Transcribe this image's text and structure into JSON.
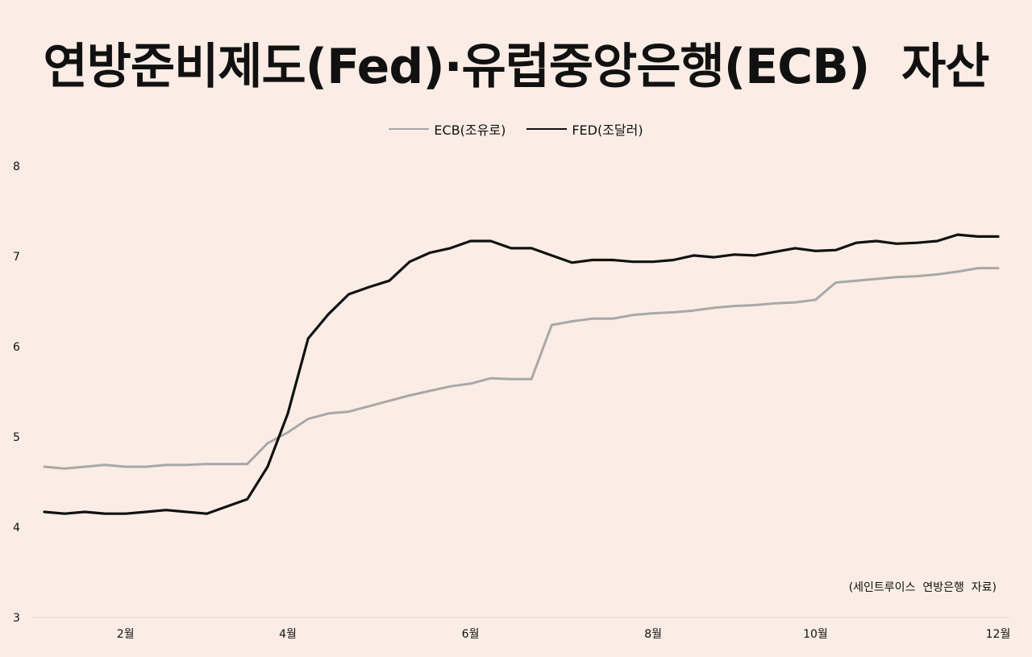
{
  "title": "연방준비제도(Fed)·유럽중앙은행(ECB)  자산",
  "source_note": "(세인트루이스  연방은행  자료)",
  "chart_data": {
    "type": "line",
    "title": "연방준비제도(Fed)·유럽중앙은행(ECB)  자산",
    "ylim": [
      3,
      8
    ],
    "yticks": [
      "3",
      "4",
      "5",
      "6",
      "7",
      "8"
    ],
    "xticks": [
      {
        "label": "2월",
        "x": 5
      },
      {
        "label": "4월",
        "x": 13
      },
      {
        "label": "6월",
        "x": 22
      },
      {
        "label": "8월",
        "x": 31
      },
      {
        "label": "10월",
        "x": 39
      },
      {
        "label": "12월",
        "x": 48
      }
    ],
    "x": [
      1,
      2,
      3,
      4,
      5,
      6,
      7,
      8,
      9,
      10,
      11,
      12,
      13,
      14,
      15,
      16,
      17,
      18,
      19,
      20,
      21,
      22,
      23,
      24,
      25,
      26,
      27,
      28,
      29,
      30,
      31,
      32,
      33,
      34,
      35,
      36,
      37,
      38,
      39,
      40,
      41,
      42,
      43,
      44,
      45,
      46,
      47,
      48
    ],
    "series": [
      {
        "name": "ECB(조유로)",
        "color": "#a8a8a8",
        "values": [
          4.67,
          4.65,
          4.67,
          4.69,
          4.67,
          4.67,
          4.69,
          4.69,
          4.7,
          4.7,
          4.7,
          4.93,
          5.05,
          5.2,
          5.26,
          5.28,
          5.34,
          5.4,
          5.46,
          5.51,
          5.56,
          5.59,
          5.65,
          5.64,
          5.64,
          6.24,
          6.28,
          6.31,
          6.31,
          6.35,
          6.37,
          6.38,
          6.4,
          6.43,
          6.45,
          6.46,
          6.48,
          6.49,
          6.52,
          6.71,
          6.73,
          6.75,
          6.77,
          6.78,
          6.8,
          6.83,
          6.87,
          6.87
        ]
      },
      {
        "name": "FED(조달러)",
        "color": "#111111",
        "values": [
          4.17,
          4.15,
          4.17,
          4.15,
          4.15,
          4.17,
          4.19,
          4.17,
          4.15,
          4.23,
          4.31,
          4.67,
          5.26,
          6.09,
          6.36,
          6.58,
          6.66,
          6.73,
          6.94,
          7.04,
          7.09,
          7.17,
          7.17,
          7.09,
          7.09,
          7.01,
          6.93,
          6.96,
          6.96,
          6.94,
          6.94,
          6.96,
          7.01,
          6.99,
          7.02,
          7.01,
          7.05,
          7.09,
          7.06,
          7.07,
          7.15,
          7.17,
          7.14,
          7.15,
          7.17,
          7.24,
          7.22,
          7.22
        ]
      }
    ],
    "grid": false,
    "legend_position": "top-center"
  }
}
